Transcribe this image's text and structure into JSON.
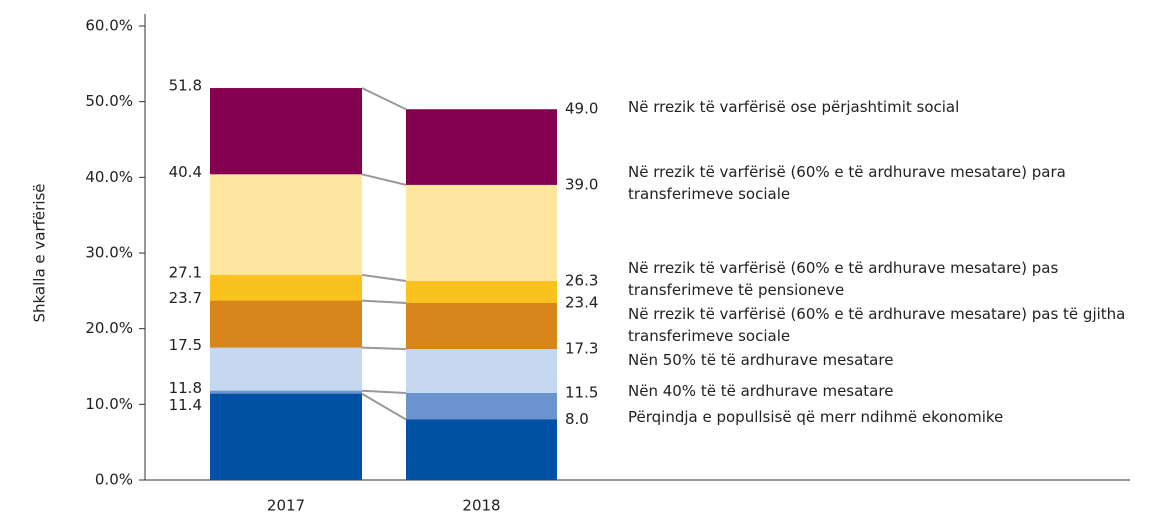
{
  "chart_data": {
    "type": "bar",
    "y_label": "Shkalla e varfërisë",
    "categories": [
      "2017",
      "2018"
    ],
    "ylim": [
      0,
      60
    ],
    "yticks": [
      {
        "value": 0,
        "label": "0.0%"
      },
      {
        "value": 10,
        "label": "10.0%"
      },
      {
        "value": 20,
        "label": "20.0%"
      },
      {
        "value": 30,
        "label": "30.0%"
      },
      {
        "value": 40,
        "label": "40.0%"
      },
      {
        "value": 50,
        "label": "50.0%"
      },
      {
        "value": 60,
        "label": "60.0%"
      }
    ],
    "series": [
      {
        "name": "Në rrezik të varfërisë ose përjashtimit social",
        "color": "#85004f",
        "values": [
          51.8,
          49.0
        ],
        "value_labels": [
          "51.8",
          "49.0"
        ]
      },
      {
        "name": "Në rrezik të varfërisë (60% e të ardhurave mesatare) para transferimeve sociale",
        "color": "#fde6a0",
        "values": [
          40.4,
          39.0
        ],
        "value_labels": [
          "40.4",
          "39.0"
        ]
      },
      {
        "name": "Në rrezik të varfërisë (60% e të ardhurave mesatare) pas transferimeve të pensioneve",
        "color": "#f9c21f",
        "values": [
          27.1,
          26.3
        ],
        "value_labels": [
          "27.1",
          "26.3"
        ]
      },
      {
        "name": "Në rrezik të varfërisë (60% e të ardhurave mesatare) pas të gjitha transferimeve sociale",
        "color": "#d6861a",
        "values": [
          23.7,
          23.4
        ],
        "value_labels": [
          "23.7",
          "23.4"
        ]
      },
      {
        "name": "Nën 50% të të ardhurave mesatare",
        "color": "#c5d8f0",
        "values": [
          17.5,
          17.3
        ],
        "value_labels": [
          "17.5",
          "17.3"
        ]
      },
      {
        "name": "Nën 40% të të ardhurave mesatare",
        "color": "#6a93cf",
        "values": [
          11.8,
          11.5
        ],
        "value_labels": [
          "11.8",
          "11.5"
        ]
      },
      {
        "name": "Përqindja e popullsisë që merr ndihmë ekonomike",
        "color": "#0051a3",
        "values": [
          11.4,
          8.0
        ],
        "value_labels": [
          "11.4",
          "8.0"
        ]
      }
    ]
  }
}
